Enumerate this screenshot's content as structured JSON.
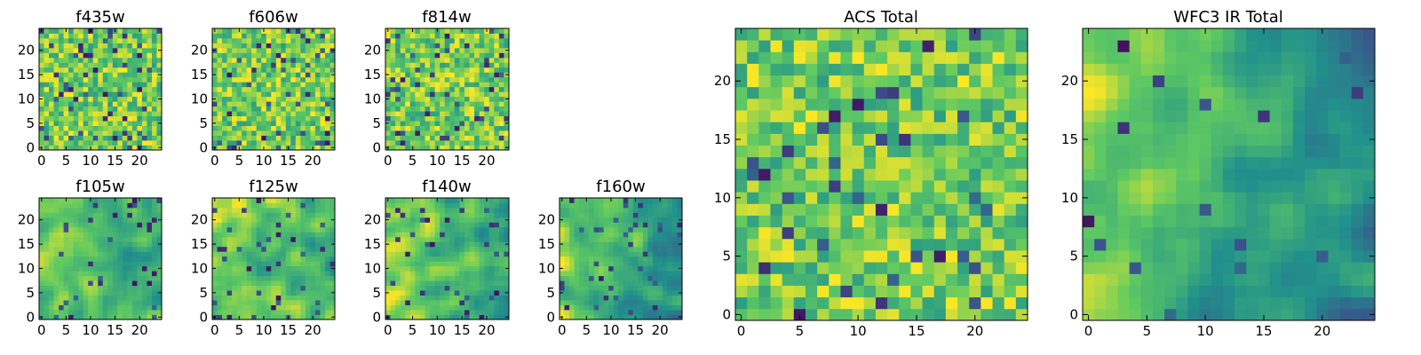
{
  "colors": {
    "colormap": [
      "#440154",
      "#3b528b",
      "#21918c",
      "#5ec962",
      "#fde725"
    ]
  },
  "chart_data": [
    {
      "type": "heatmap",
      "title": "f435w",
      "grid_size": 25,
      "xlim": [
        -0.5,
        24.5
      ],
      "ylim": [
        -0.5,
        24.5
      ],
      "x_ticks": [
        0,
        5,
        10,
        15,
        20
      ],
      "y_ticks": [
        0,
        5,
        10,
        15,
        20
      ],
      "texture": "noise",
      "gradient": 0,
      "dark_spots": 0.07
    },
    {
      "type": "heatmap",
      "title": "f606w",
      "grid_size": 25,
      "xlim": [
        -0.5,
        24.5
      ],
      "ylim": [
        -0.5,
        24.5
      ],
      "x_ticks": [
        0,
        5,
        10,
        15,
        20
      ],
      "y_ticks": [
        0,
        5,
        10,
        15,
        20
      ],
      "texture": "noise",
      "gradient": 0,
      "dark_spots": 0.07
    },
    {
      "type": "heatmap",
      "title": "f814w",
      "grid_size": 25,
      "xlim": [
        -0.5,
        24.5
      ],
      "ylim": [
        -0.5,
        24.5
      ],
      "x_ticks": [
        0,
        5,
        10,
        15,
        20
      ],
      "y_ticks": [
        0,
        5,
        10,
        15,
        20
      ],
      "texture": "noise",
      "gradient": 0,
      "dark_spots": 0.06
    },
    {
      "type": "heatmap",
      "title": "f105w",
      "grid_size": 25,
      "xlim": [
        -0.5,
        24.5
      ],
      "ylim": [
        -0.5,
        24.5
      ],
      "x_ticks": [
        0,
        5,
        10,
        15,
        20
      ],
      "y_ticks": [
        0,
        5,
        10,
        15,
        20
      ],
      "texture": "smooth",
      "gradient": 0.25,
      "dark_spots": 0.05
    },
    {
      "type": "heatmap",
      "title": "f125w",
      "grid_size": 25,
      "xlim": [
        -0.5,
        24.5
      ],
      "ylim": [
        -0.5,
        24.5
      ],
      "x_ticks": [
        0,
        5,
        10,
        15,
        20
      ],
      "y_ticks": [
        0,
        5,
        10,
        15,
        20
      ],
      "texture": "smooth",
      "gradient": 0.25,
      "dark_spots": 0.05
    },
    {
      "type": "heatmap",
      "title": "f140w",
      "grid_size": 25,
      "xlim": [
        -0.5,
        24.5
      ],
      "ylim": [
        -0.5,
        24.5
      ],
      "x_ticks": [
        0,
        5,
        10,
        15,
        20
      ],
      "y_ticks": [
        0,
        5,
        10,
        15,
        20
      ],
      "texture": "smooth",
      "gradient": 0.45,
      "dark_spots": 0.05
    },
    {
      "type": "heatmap",
      "title": "f160w",
      "grid_size": 25,
      "xlim": [
        -0.5,
        24.5
      ],
      "ylim": [
        -0.5,
        24.5
      ],
      "x_ticks": [
        0,
        5,
        10,
        15,
        20
      ],
      "y_ticks": [
        0,
        5,
        10,
        15,
        20
      ],
      "texture": "smooth",
      "gradient": 0.55,
      "dark_spots": 0.07
    },
    {
      "type": "heatmap",
      "title": "ACS Total",
      "grid_size": 25,
      "xlim": [
        -0.5,
        24.5
      ],
      "ylim": [
        -0.5,
        24.5
      ],
      "x_ticks": [
        0,
        5,
        10,
        15,
        20
      ],
      "y_ticks": [
        0,
        5,
        10,
        15,
        20
      ],
      "texture": "noise",
      "gradient": 0,
      "dark_spots": 0.05
    },
    {
      "type": "heatmap",
      "title": "WFC3 IR Total",
      "grid_size": 25,
      "xlim": [
        -0.5,
        24.5
      ],
      "ylim": [
        -0.5,
        24.5
      ],
      "x_ticks": [
        0,
        5,
        10,
        15,
        20
      ],
      "y_ticks": [
        0,
        5,
        10,
        15,
        20
      ],
      "texture": "smooth",
      "gradient": 0.7,
      "dark_spots": 0.02
    }
  ]
}
